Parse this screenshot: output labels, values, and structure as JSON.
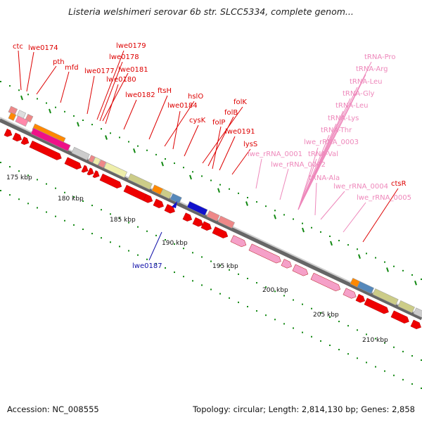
{
  "title": "Listeria welshimeri serovar 6b str. SLCC5334, complete genom...",
  "footer": {
    "accession": "Accession: NC_008555",
    "summary": "Topology: circular; Length: 2,814,130 bp; Genes: 2,858"
  },
  "scale_labels": [
    "175 kbp",
    "180 kbp",
    "185 kbp",
    "190 kbp",
    "195 kbp",
    "200 kbp",
    "205 kbp",
    "210 kbp"
  ],
  "colors": {
    "gene_red": "#ee0000",
    "gene_label_red": "#dd0000",
    "rna_pink": "#f5a0c8",
    "rna_label_pink": "#ee88bb",
    "highlight_blue": "#1111aa",
    "backbone": "#888888",
    "tick_green": "#118811"
  },
  "gene_labels": [
    {
      "text": "ctc"
    },
    {
      "text": "lwe0174"
    },
    {
      "text": "pth"
    },
    {
      "text": "mfd"
    },
    {
      "text": "lwe0177"
    },
    {
      "text": "lwe0179"
    },
    {
      "text": "lwe0178"
    },
    {
      "text": "lwe0181"
    },
    {
      "text": "lwe0180"
    },
    {
      "text": "lwe0182"
    },
    {
      "text": "ftsH"
    },
    {
      "text": "hslO"
    },
    {
      "text": "lwe0184"
    },
    {
      "text": "cysK"
    },
    {
      "text": "folK"
    },
    {
      "text": "folB"
    },
    {
      "text": "folP"
    },
    {
      "text": "lwe0191"
    },
    {
      "text": "lysS"
    },
    {
      "text": "ctsR"
    }
  ],
  "rna_labels": [
    {
      "text": "tRNA-Pro"
    },
    {
      "text": "tRNA-Arg"
    },
    {
      "text": "tRNA-Leu"
    },
    {
      "text": "tRNA-Gly"
    },
    {
      "text": "tRNA-Leu"
    },
    {
      "text": "tRNA-Lys"
    },
    {
      "text": "tRNA-Thr"
    },
    {
      "text": "lwe_rRNA_0003"
    },
    {
      "text": "tRNA-Val"
    },
    {
      "text": "lwe_rRNA_0001"
    },
    {
      "text": "lwe_rRNA_0002"
    },
    {
      "text": "tRNA-Ala"
    },
    {
      "text": "lwe_rRNA_0004"
    },
    {
      "text": "lwe_rRNA_0005"
    }
  ],
  "highlight_label": {
    "text": "lwe0187"
  }
}
